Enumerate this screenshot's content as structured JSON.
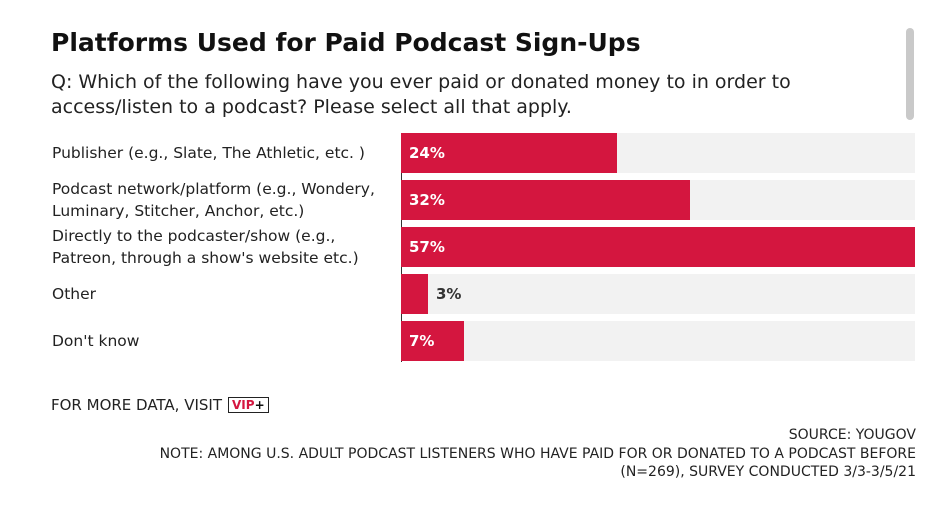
{
  "title": "Platforms Used for Paid Podcast Sign-Ups",
  "subtitle": "Q: Which of the following have you ever paid or donated money to in order to access/listen to a podcast? Please select all that apply.",
  "more_data": {
    "text": "FOR MORE DATA, VISIT",
    "badge": "VIP",
    "badge_plus": "+"
  },
  "source": "SOURCE: YOUGOV",
  "note_line1": "NOTE: AMONG U.S. ADULT PODCAST LISTENERS WHO HAVE PAID FOR OR DONATED TO A PODCAST BEFORE",
  "note_line2": "(N=269), SURVEY CONDUCTED 3/3-3/5/21",
  "colors": {
    "bar": "#d4163f",
    "track": "#f2f2f2"
  },
  "chart_data": {
    "type": "bar",
    "orientation": "horizontal",
    "categories": [
      "Publisher (e.g., Slate, The Athletic, etc. )",
      "Podcast network/platform (e.g., Wondery, Luminary, Stitcher, Anchor, etc.)",
      "Directly to the podcaster/show (e.g., Patreon, through a show's website etc.)",
      "Other",
      "Don't know"
    ],
    "values": [
      24,
      32,
      57,
      3,
      7
    ],
    "value_labels": [
      "24%",
      "32%",
      "57%",
      "3%",
      "7%"
    ],
    "unit": "%",
    "xlim": [
      0,
      57
    ],
    "grid": false,
    "legend": "none"
  }
}
